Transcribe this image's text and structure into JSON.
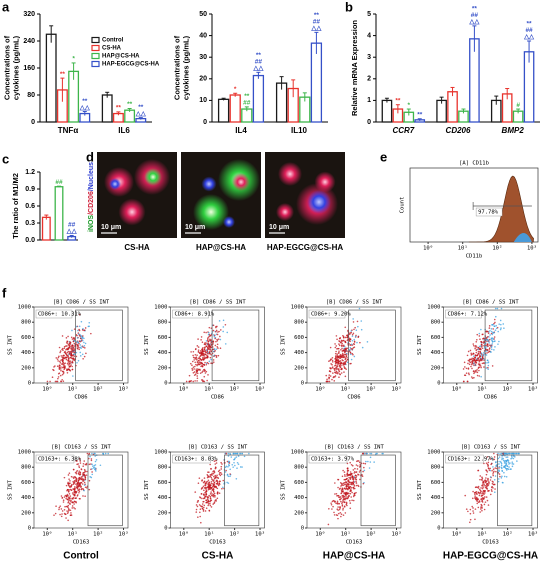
{
  "panel_labels": [
    "a",
    "b",
    "c",
    "d",
    "e",
    "f"
  ],
  "chart_data": [
    {
      "type": "bar",
      "ylabel": [
        "Concentrations of",
        "cytokines (pg/mL)"
      ],
      "categories": [
        "TNFα",
        "IL6"
      ],
      "ylim": [
        0,
        320
      ],
      "yticks": [
        0,
        80,
        160,
        240,
        320
      ],
      "legend": true,
      "series": [
        {
          "name": "Control",
          "color": "#1a1a1a",
          "values": [
            260,
            80
          ],
          "errors": [
            25,
            8
          ],
          "annotations": [
            null,
            null
          ]
        },
        {
          "name": "CS-HA",
          "color": "#e8322c",
          "values": [
            95,
            25
          ],
          "errors": [
            35,
            5
          ],
          "annotations": [
            [
              "**"
            ],
            [
              "**"
            ]
          ]
        },
        {
          "name": "HAP@CS-HA",
          "color": "#3db54a",
          "values": [
            150,
            35
          ],
          "errors": [
            25,
            5
          ],
          "annotations": [
            [
              "*"
            ],
            [
              "**"
            ]
          ]
        },
        {
          "name": "HAP-EGCG@CS-HA",
          "color": "#3550c8",
          "values": [
            25,
            10
          ],
          "errors": [
            6,
            3
          ],
          "annotations": [
            [
              "**",
              "△△"
            ],
            [
              "**",
              "△△"
            ]
          ]
        }
      ]
    },
    {
      "type": "bar",
      "ylabel": [
        "Concentrations of",
        "cytokines (pg/mL)"
      ],
      "categories": [
        "IL4",
        "IL10"
      ],
      "ylim": [
        0,
        50
      ],
      "yticks": [
        0,
        10,
        20,
        30,
        40,
        50
      ],
      "series": [
        {
          "color": "#1a1a1a",
          "values": [
            10.5,
            18
          ],
          "errors": [
            0.5,
            3
          ],
          "annotations": [
            null,
            null
          ]
        },
        {
          "color": "#e8322c",
          "values": [
            12.5,
            15.5
          ],
          "errors": [
            0.8,
            4
          ],
          "annotations": [
            [
              "*"
            ],
            null
          ]
        },
        {
          "color": "#3db54a",
          "values": [
            6,
            11.5
          ],
          "errors": [
            1,
            2
          ],
          "annotations": [
            [
              "**",
              "##"
            ],
            null
          ]
        },
        {
          "color": "#3550c8",
          "values": [
            21.5,
            36.5
          ],
          "errors": [
            1.5,
            5
          ],
          "annotations": [
            [
              "**",
              "##",
              "△△"
            ],
            [
              "**",
              "##",
              "△△"
            ]
          ]
        }
      ]
    },
    {
      "type": "bar",
      "ylabel": [
        "Relative mRNA Expression"
      ],
      "categories": [
        "CCR7",
        "CD206",
        "BMP2"
      ],
      "italic": true,
      "ylim": [
        0,
        5
      ],
      "yticks": [
        0,
        1,
        2,
        3,
        4,
        5
      ],
      "series": [
        {
          "color": "#1a1a1a",
          "values": [
            1,
            1,
            1
          ],
          "errors": [
            0.1,
            0.15,
            0.2
          ],
          "annotations": [
            null,
            null,
            null
          ]
        },
        {
          "color": "#e8322c",
          "values": [
            0.6,
            1.4,
            1.3
          ],
          "errors": [
            0.2,
            0.2,
            0.25
          ],
          "annotations": [
            [
              "**"
            ],
            null,
            null
          ]
        },
        {
          "color": "#3db54a",
          "values": [
            0.45,
            0.5,
            0.5
          ],
          "errors": [
            0.15,
            0.1,
            0.1
          ],
          "annotations": [
            [
              "*"
            ],
            null,
            [
              "#"
            ]
          ]
        },
        {
          "color": "#3550c8",
          "values": [
            0.1,
            3.85,
            3.25
          ],
          "errors": [
            0.05,
            0.6,
            0.5
          ],
          "annotations": [
            [
              "**"
            ],
            [
              "**",
              "##",
              "△△"
            ],
            [
              "**",
              "##",
              "△△"
            ]
          ]
        }
      ]
    },
    {
      "type": "bar",
      "ylabel": [
        "The ratio of M1/M2"
      ],
      "categories": [
        null,
        null,
        null
      ],
      "ylim": [
        0,
        1.2
      ],
      "yticks": [
        {
          "value": 0,
          "label": "0.0"
        },
        0.3,
        0.6,
        0.9,
        1.2
      ],
      "values": [
        0.4,
        0.94,
        0.06
      ],
      "errors": [
        0.04,
        0.01,
        0.02
      ],
      "colors": [
        "#e8322c",
        "#3db54a",
        "#3550c8"
      ],
      "annotations": [
        null,
        [
          "##"
        ],
        [
          "##",
          "△△"
        ]
      ]
    }
  ],
  "panel_d": {
    "stain_label": [
      "iNOS",
      "/CD206",
      "/Nucleus"
    ],
    "scale_bar": "10 μm",
    "images": [
      "CS-HA",
      "HAP@CS-HA",
      "HAP-EGCG@CS-HA"
    ]
  },
  "panel_e": {
    "title": "[A] CD11b",
    "xlabel": "CD11b",
    "ylabel": "Count",
    "gate": "97.78%",
    "xlim": [
      0.3,
      1500
    ],
    "xticks": [
      {
        "value": 1,
        "label": "10⁰"
      },
      {
        "value": 10,
        "label": "10¹"
      },
      {
        "value": 100,
        "label": "10²"
      },
      {
        "value": 1000,
        "label": "10³"
      }
    ]
  },
  "panel_f": {
    "ylabel": "SS INT",
    "ylim": [
      0,
      1000
    ],
    "yticks": [
      0,
      200,
      400,
      600,
      800,
      1000
    ],
    "xlim": [
      0.3,
      1500
    ],
    "xticks": [
      {
        "value": 1,
        "label": "10⁰"
      },
      {
        "value": 10,
        "label": "10¹"
      },
      {
        "value": 100,
        "label": "10²"
      },
      {
        "value": 1000,
        "label": "10³"
      }
    ],
    "plots": [
      {
        "title": "[B] CD86 / SS INT",
        "gate": "CD86+: 10.31%",
        "xlabel": "CD86"
      },
      {
        "title": "[B] CD86 / SS INT",
        "gate": "CD86+: 8.91%",
        "xlabel": "CD86"
      },
      {
        "title": "[B] CD86 / SS INT",
        "gate": "CD86+: 9.20%",
        "xlabel": "CD86"
      },
      {
        "title": "[B] CD86 / SS INT",
        "gate": "CD86+: 7.12%",
        "xlabel": "CD86"
      },
      {
        "title": "[B] CD163 / SS INT",
        "gate": "CD163+: 6.38%",
        "xlabel": "CD163"
      },
      {
        "title": "[B] CD163 / SS INT",
        "gate": "CD163+: 8.03%",
        "xlabel": "CD163"
      },
      {
        "title": "[B] CD163 / SS INT",
        "gate": "CD163+: 3.97%",
        "xlabel": "CD163"
      },
      {
        "title": "[B] CD163 / SS INT",
        "gate": "CD163+: 22.97%",
        "xlabel": "CD163"
      }
    ],
    "columns": [
      "Control",
      "CS-HA",
      "HAP@CS-HA",
      "HAP-EGCG@CS-HA"
    ]
  }
}
